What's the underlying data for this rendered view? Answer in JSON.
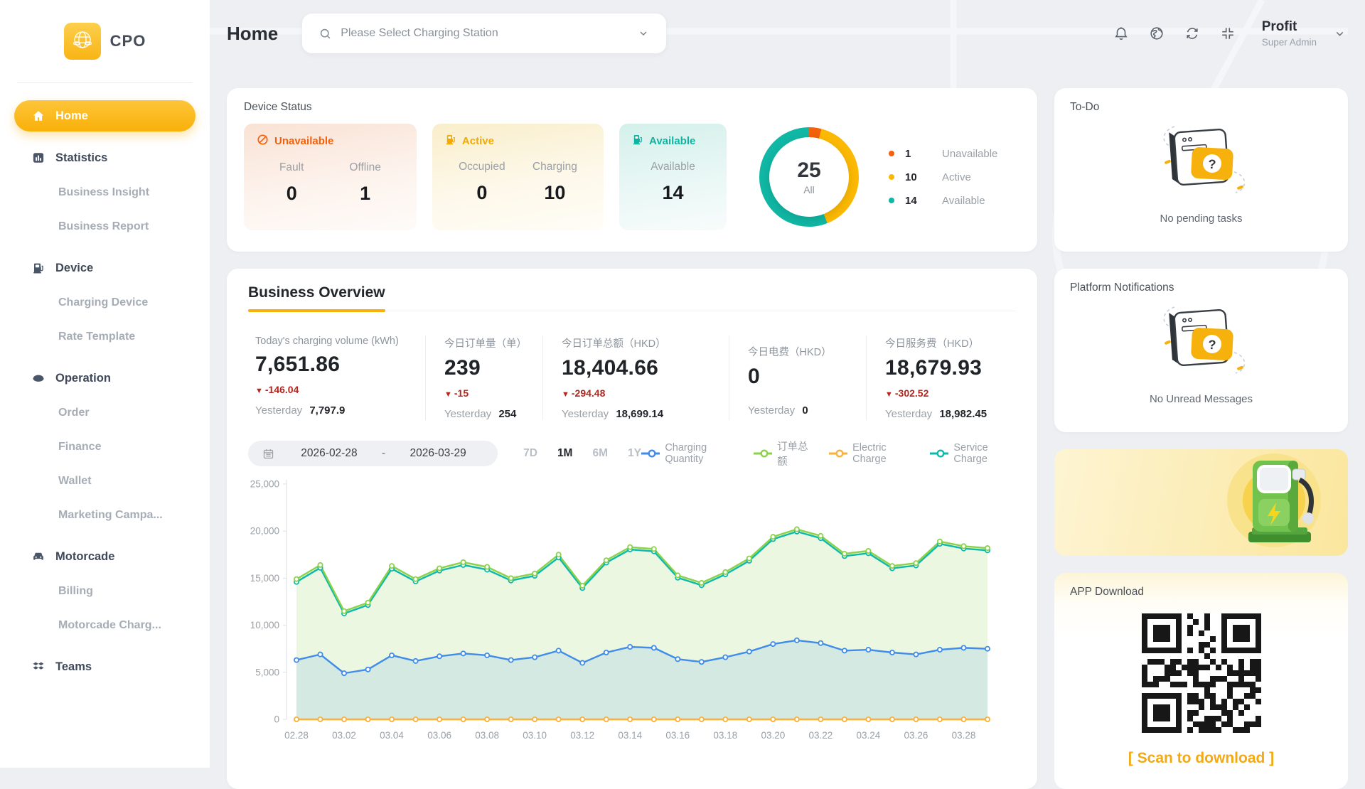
{
  "brand": {
    "name": "CPO"
  },
  "sidebar": {
    "items": [
      {
        "label": "Home",
        "icon": "home-icon",
        "type": "top",
        "active": true
      },
      {
        "label": "Statistics",
        "icon": "statistics-icon",
        "type": "top"
      },
      {
        "label": "Business Insight",
        "type": "sub"
      },
      {
        "label": "Business Report",
        "type": "sub"
      },
      {
        "label": "Device",
        "icon": "device-icon",
        "type": "top"
      },
      {
        "label": "Charging Device",
        "type": "sub"
      },
      {
        "label": "Rate Template",
        "type": "sub"
      },
      {
        "label": "Operation",
        "icon": "operation-icon",
        "type": "top"
      },
      {
        "label": "Order",
        "type": "sub"
      },
      {
        "label": "Finance",
        "type": "sub"
      },
      {
        "label": "Wallet",
        "type": "sub"
      },
      {
        "label": "Marketing Campa...",
        "type": "sub"
      },
      {
        "label": "Motorcade",
        "icon": "motorcade-icon",
        "type": "top"
      },
      {
        "label": "Billing",
        "type": "sub"
      },
      {
        "label": "Motorcade Charg...",
        "type": "sub"
      },
      {
        "label": "Teams",
        "icon": "teams-icon",
        "type": "top"
      }
    ]
  },
  "header": {
    "title": "Home",
    "station_placeholder": "Please Select Charging Station",
    "user": {
      "name": "Profit",
      "role": "Super Admin"
    }
  },
  "device_status": {
    "title": "Device Status",
    "unavailable": {
      "label": "Unavailable",
      "color": "#f2610c",
      "metrics": [
        {
          "label": "Fault",
          "value": "0"
        },
        {
          "label": "Offline",
          "value": "1"
        }
      ]
    },
    "active": {
      "label": "Active",
      "color": "#f3a900",
      "metrics": [
        {
          "label": "Occupied",
          "value": "0"
        },
        {
          "label": "Charging",
          "value": "10"
        }
      ]
    },
    "available": {
      "label": "Available",
      "color": "#10b39f",
      "metrics": [
        {
          "label": "Available",
          "value": "14"
        }
      ]
    },
    "donut": {
      "total": "25",
      "total_label": "All",
      "segments": [
        {
          "label": "Unavailable",
          "value": 1,
          "color": "#f2610c"
        },
        {
          "label": "Active",
          "value": 10,
          "color": "#fbb903"
        },
        {
          "label": "Available",
          "value": 14,
          "color": "#10b7a4"
        }
      ]
    }
  },
  "overview": {
    "title": "Business Overview",
    "yesterday_label": "Yesterday",
    "stats": [
      {
        "label": "Today's charging volume (kWh)",
        "value": "7,651.86",
        "delta": "-146.04",
        "yesterday": "7,797.9"
      },
      {
        "label": "今日订单量（单）",
        "value": "239",
        "delta": "-15",
        "yesterday": "254"
      },
      {
        "label": "今日订单总额（HKD）",
        "value": "18,404.66",
        "delta": "-294.48",
        "yesterday": "18,699.14"
      },
      {
        "label": "今日电费（HKD）",
        "value": "0",
        "delta": null,
        "yesterday": "0"
      },
      {
        "label": "今日服务费（HKD）",
        "value": "18,679.93",
        "delta": "-302.52",
        "yesterday": "18,982.45"
      }
    ],
    "date_range": {
      "start": "2026-02-28",
      "separator": "-",
      "end": "2026-03-29"
    },
    "range_buttons": [
      {
        "label": "7D",
        "active": false
      },
      {
        "label": "1M",
        "active": true
      },
      {
        "label": "6M",
        "active": false
      },
      {
        "label": "1Y",
        "active": false
      }
    ]
  },
  "chart_data": {
    "type": "line",
    "x": [
      "02.28",
      "03.01",
      "03.02",
      "03.03",
      "03.04",
      "03.05",
      "03.06",
      "03.07",
      "03.08",
      "03.09",
      "03.10",
      "03.11",
      "03.12",
      "03.13",
      "03.14",
      "03.15",
      "03.16",
      "03.17",
      "03.18",
      "03.19",
      "03.20",
      "03.21",
      "03.22",
      "03.23",
      "03.24",
      "03.25",
      "03.26",
      "03.27",
      "03.28",
      "03.29"
    ],
    "x_label_every": 2,
    "ylim": [
      0,
      25000
    ],
    "yticks": [
      "0",
      "5,000",
      "10,000",
      "15,000",
      "20,000",
      "25,000"
    ],
    "grid": false,
    "legend_position": "top-right",
    "series": [
      {
        "name": "Charging Quantity",
        "color": "#3f8cea",
        "area": "rgba(63,140,234,0.13)",
        "values": [
          6300,
          6900,
          4900,
          5300,
          6800,
          6200,
          6700,
          7000,
          6800,
          6300,
          6600,
          7300,
          6000,
          7100,
          7700,
          7600,
          6400,
          6100,
          6600,
          7200,
          8000,
          8400,
          8100,
          7300,
          7400,
          7100,
          6900,
          7400,
          7600,
          7500
        ]
      },
      {
        "name": "订单总额",
        "color": "#8bd24a",
        "area": "rgba(139,210,74,0.17)",
        "values": [
          14900,
          16400,
          11500,
          12400,
          16300,
          14900,
          16050,
          16700,
          16200,
          15000,
          15500,
          17500,
          14200,
          16900,
          18300,
          18100,
          15300,
          14500,
          15650,
          17100,
          19400,
          20200,
          19500,
          17600,
          17900,
          16300,
          16600,
          18900,
          18400,
          18200
        ]
      },
      {
        "name": "Electric Charge",
        "color": "#fbb03b",
        "area": null,
        "values": [
          0,
          0,
          0,
          0,
          0,
          0,
          0,
          0,
          0,
          0,
          0,
          0,
          0,
          0,
          0,
          0,
          0,
          0,
          0,
          0,
          0,
          0,
          0,
          0,
          0,
          0,
          0,
          0,
          0,
          0
        ]
      },
      {
        "name": "Service Charge",
        "color": "#0fb9a9",
        "area": null,
        "values": [
          14600,
          16100,
          11250,
          12150,
          16000,
          14650,
          15800,
          16400,
          15900,
          14750,
          15250,
          17200,
          13950,
          16650,
          18050,
          17850,
          15050,
          14250,
          15400,
          16850,
          19150,
          19950,
          19250,
          17350,
          17650,
          16050,
          16350,
          18650,
          18150,
          17950
        ]
      }
    ]
  },
  "todo": {
    "title": "To-Do",
    "empty_text": "No pending tasks"
  },
  "notifications": {
    "title": "Platform Notifications",
    "empty_text": "No Unread Messages"
  },
  "app_download": {
    "title": "APP Download",
    "scan_text": "[ Scan to download ]"
  }
}
